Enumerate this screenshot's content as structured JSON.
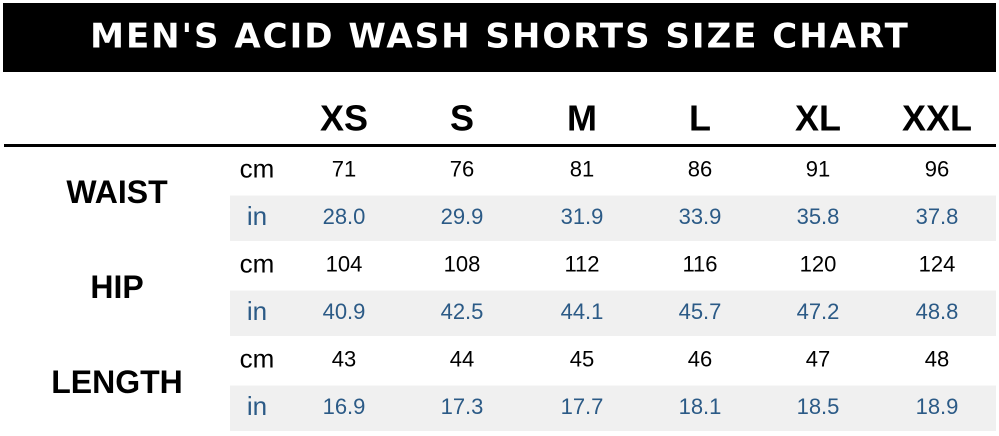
{
  "header": {
    "title": "MEN'S ACID WASH SHORTS SIZE CHART"
  },
  "table": {
    "columns": [
      "XS",
      "S",
      "M",
      "L",
      "XL",
      "XXL"
    ],
    "groups": [
      {
        "label": "WAIST",
        "rows": [
          {
            "unit": "cm",
            "values": [
              "71",
              "76",
              "81",
              "86",
              "91",
              "96"
            ]
          },
          {
            "unit": "in",
            "values": [
              "28.0",
              "29.9",
              "31.9",
              "33.9",
              "35.8",
              "37.8"
            ]
          }
        ]
      },
      {
        "label": "HIP",
        "rows": [
          {
            "unit": "cm",
            "values": [
              "104",
              "108",
              "112",
              "116",
              "120",
              "124"
            ]
          },
          {
            "unit": "in",
            "values": [
              "40.9",
              "42.5",
              "44.1",
              "45.7",
              "47.2",
              "48.8"
            ]
          }
        ]
      },
      {
        "label": "LENGTH",
        "rows": [
          {
            "unit": "cm",
            "values": [
              "43",
              "44",
              "45",
              "46",
              "47",
              "48"
            ]
          },
          {
            "unit": "in",
            "values": [
              "16.9",
              "17.3",
              "17.7",
              "18.1",
              "18.5",
              "18.9"
            ]
          }
        ]
      }
    ]
  }
}
